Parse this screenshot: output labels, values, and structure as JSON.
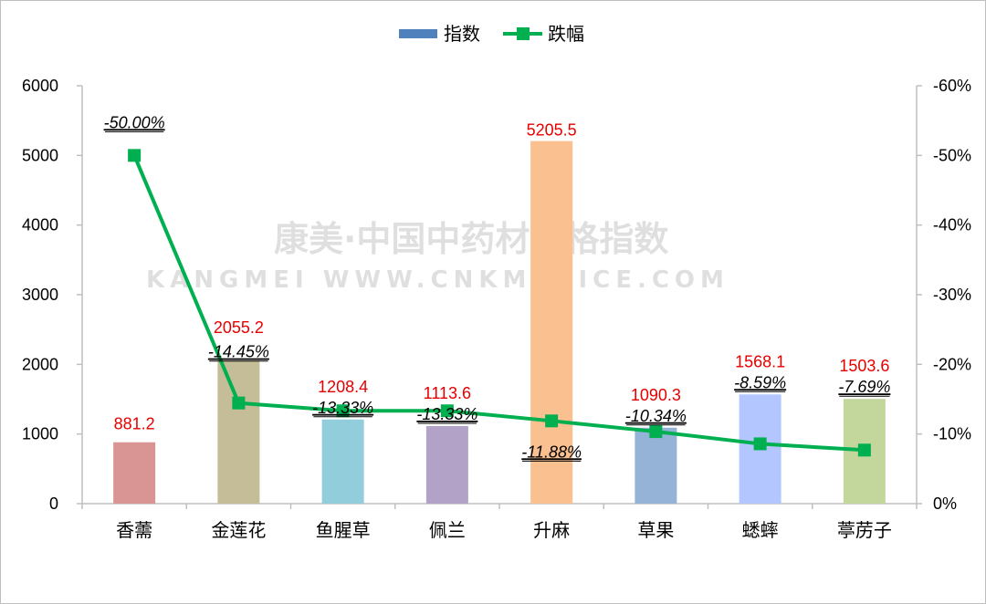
{
  "chart_data": {
    "type": "bar",
    "categories": [
      "香薷",
      "金莲花",
      "鱼腥草",
      "佩兰",
      "升麻",
      "草果",
      "蟋蟀",
      "葶苈子"
    ],
    "series": [
      {
        "name": "指数",
        "type": "bar",
        "axis": "left",
        "values": [
          881.2,
          2055.2,
          1208.4,
          1113.6,
          5205.5,
          1090.3,
          1568.1,
          1503.6
        ],
        "labels": [
          "881.2",
          "2055.2",
          "1208.4",
          "1113.6",
          "5205.5",
          "1090.3",
          "1568.1",
          "1503.6"
        ]
      },
      {
        "name": "跌幅",
        "type": "line",
        "axis": "right",
        "values": [
          -50.0,
          -14.45,
          -13.33,
          -13.33,
          -11.88,
          -10.34,
          -8.59,
          -7.69
        ],
        "labels": [
          "-50.00%",
          "-14.45%",
          "-13.33%",
          "-13.33%",
          "-11.88%",
          "-10.34%",
          "-8.59%",
          "-7.69%"
        ]
      }
    ],
    "y_left": {
      "min": 0,
      "max": 6000,
      "ticks": [
        "0",
        "1000",
        "2000",
        "3000",
        "4000",
        "5000",
        "6000"
      ]
    },
    "y_right": {
      "min": 0,
      "max": -60,
      "ticks": [
        "0%",
        "-10%",
        "-20%",
        "-30%",
        "-40%",
        "-50%",
        "-60%"
      ]
    },
    "legend": {
      "placement": "top-center"
    },
    "grid": false
  },
  "colors": {
    "bars": [
      "#d99594",
      "#c4bd97",
      "#92cddc",
      "#b3a2c7",
      "#fac090",
      "#95b3d7",
      "#b3c6ff",
      "#c3d69b"
    ],
    "line": "#00b050",
    "legend_bar": "#4f81bd",
    "value_label": "#e60000"
  },
  "watermark": {
    "line1": "康美·中国中药材价格指数",
    "line2": "KANGMEI WWW.CNKMPRICE.COM"
  }
}
